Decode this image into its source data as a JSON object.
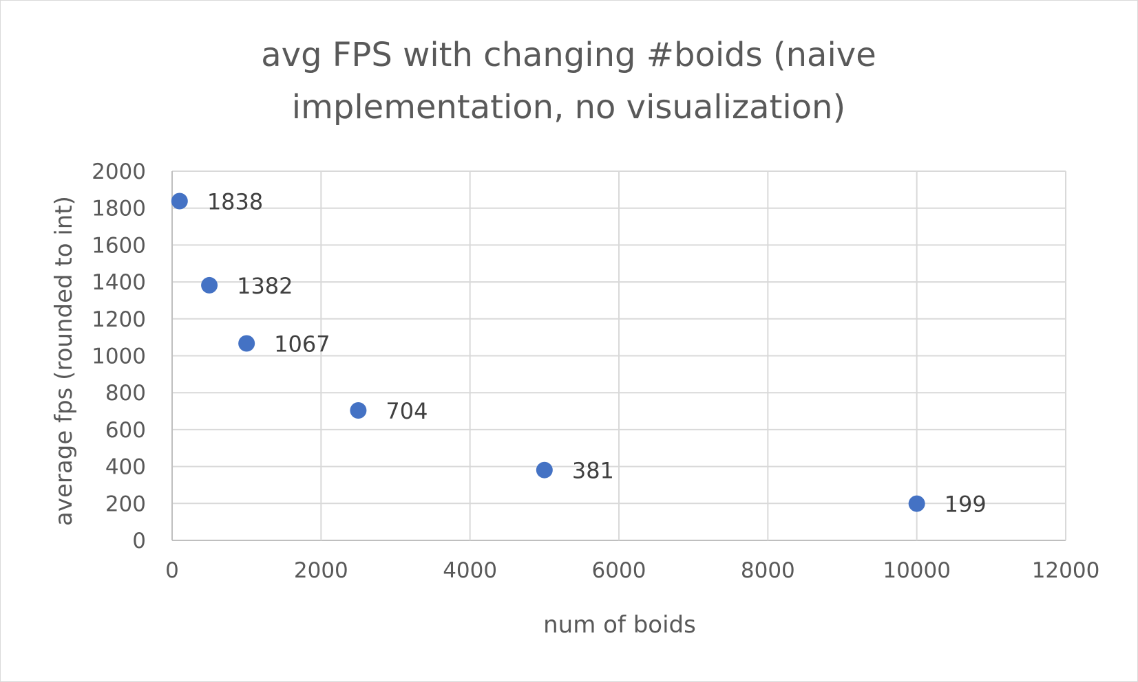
{
  "chart_data": {
    "type": "scatter",
    "title_lines": [
      "avg FPS with changing #boids (naive",
      "implementation, no visualization)"
    ],
    "xlabel": "num of boids",
    "ylabel": "average fps (rounded to int)",
    "xlim": [
      0,
      12000
    ],
    "ylim": [
      0,
      2000
    ],
    "x_ticks": [
      "0",
      "2000",
      "4000",
      "6000",
      "8000",
      "10000",
      "12000"
    ],
    "y_ticks": [
      "0",
      "200",
      "400",
      "600",
      "800",
      "1000",
      "1200",
      "1400",
      "1600",
      "1800",
      "2000"
    ],
    "grid": true,
    "legend": "none",
    "marker_color": "#4472c4",
    "points": [
      {
        "x": 100,
        "y": 1838,
        "label": "1838"
      },
      {
        "x": 500,
        "y": 1382,
        "label": "1382"
      },
      {
        "x": 1000,
        "y": 1067,
        "label": "1067"
      },
      {
        "x": 2500,
        "y": 704,
        "label": "704"
      },
      {
        "x": 5000,
        "y": 381,
        "label": "381"
      },
      {
        "x": 10000,
        "y": 199,
        "label": "199"
      }
    ]
  }
}
